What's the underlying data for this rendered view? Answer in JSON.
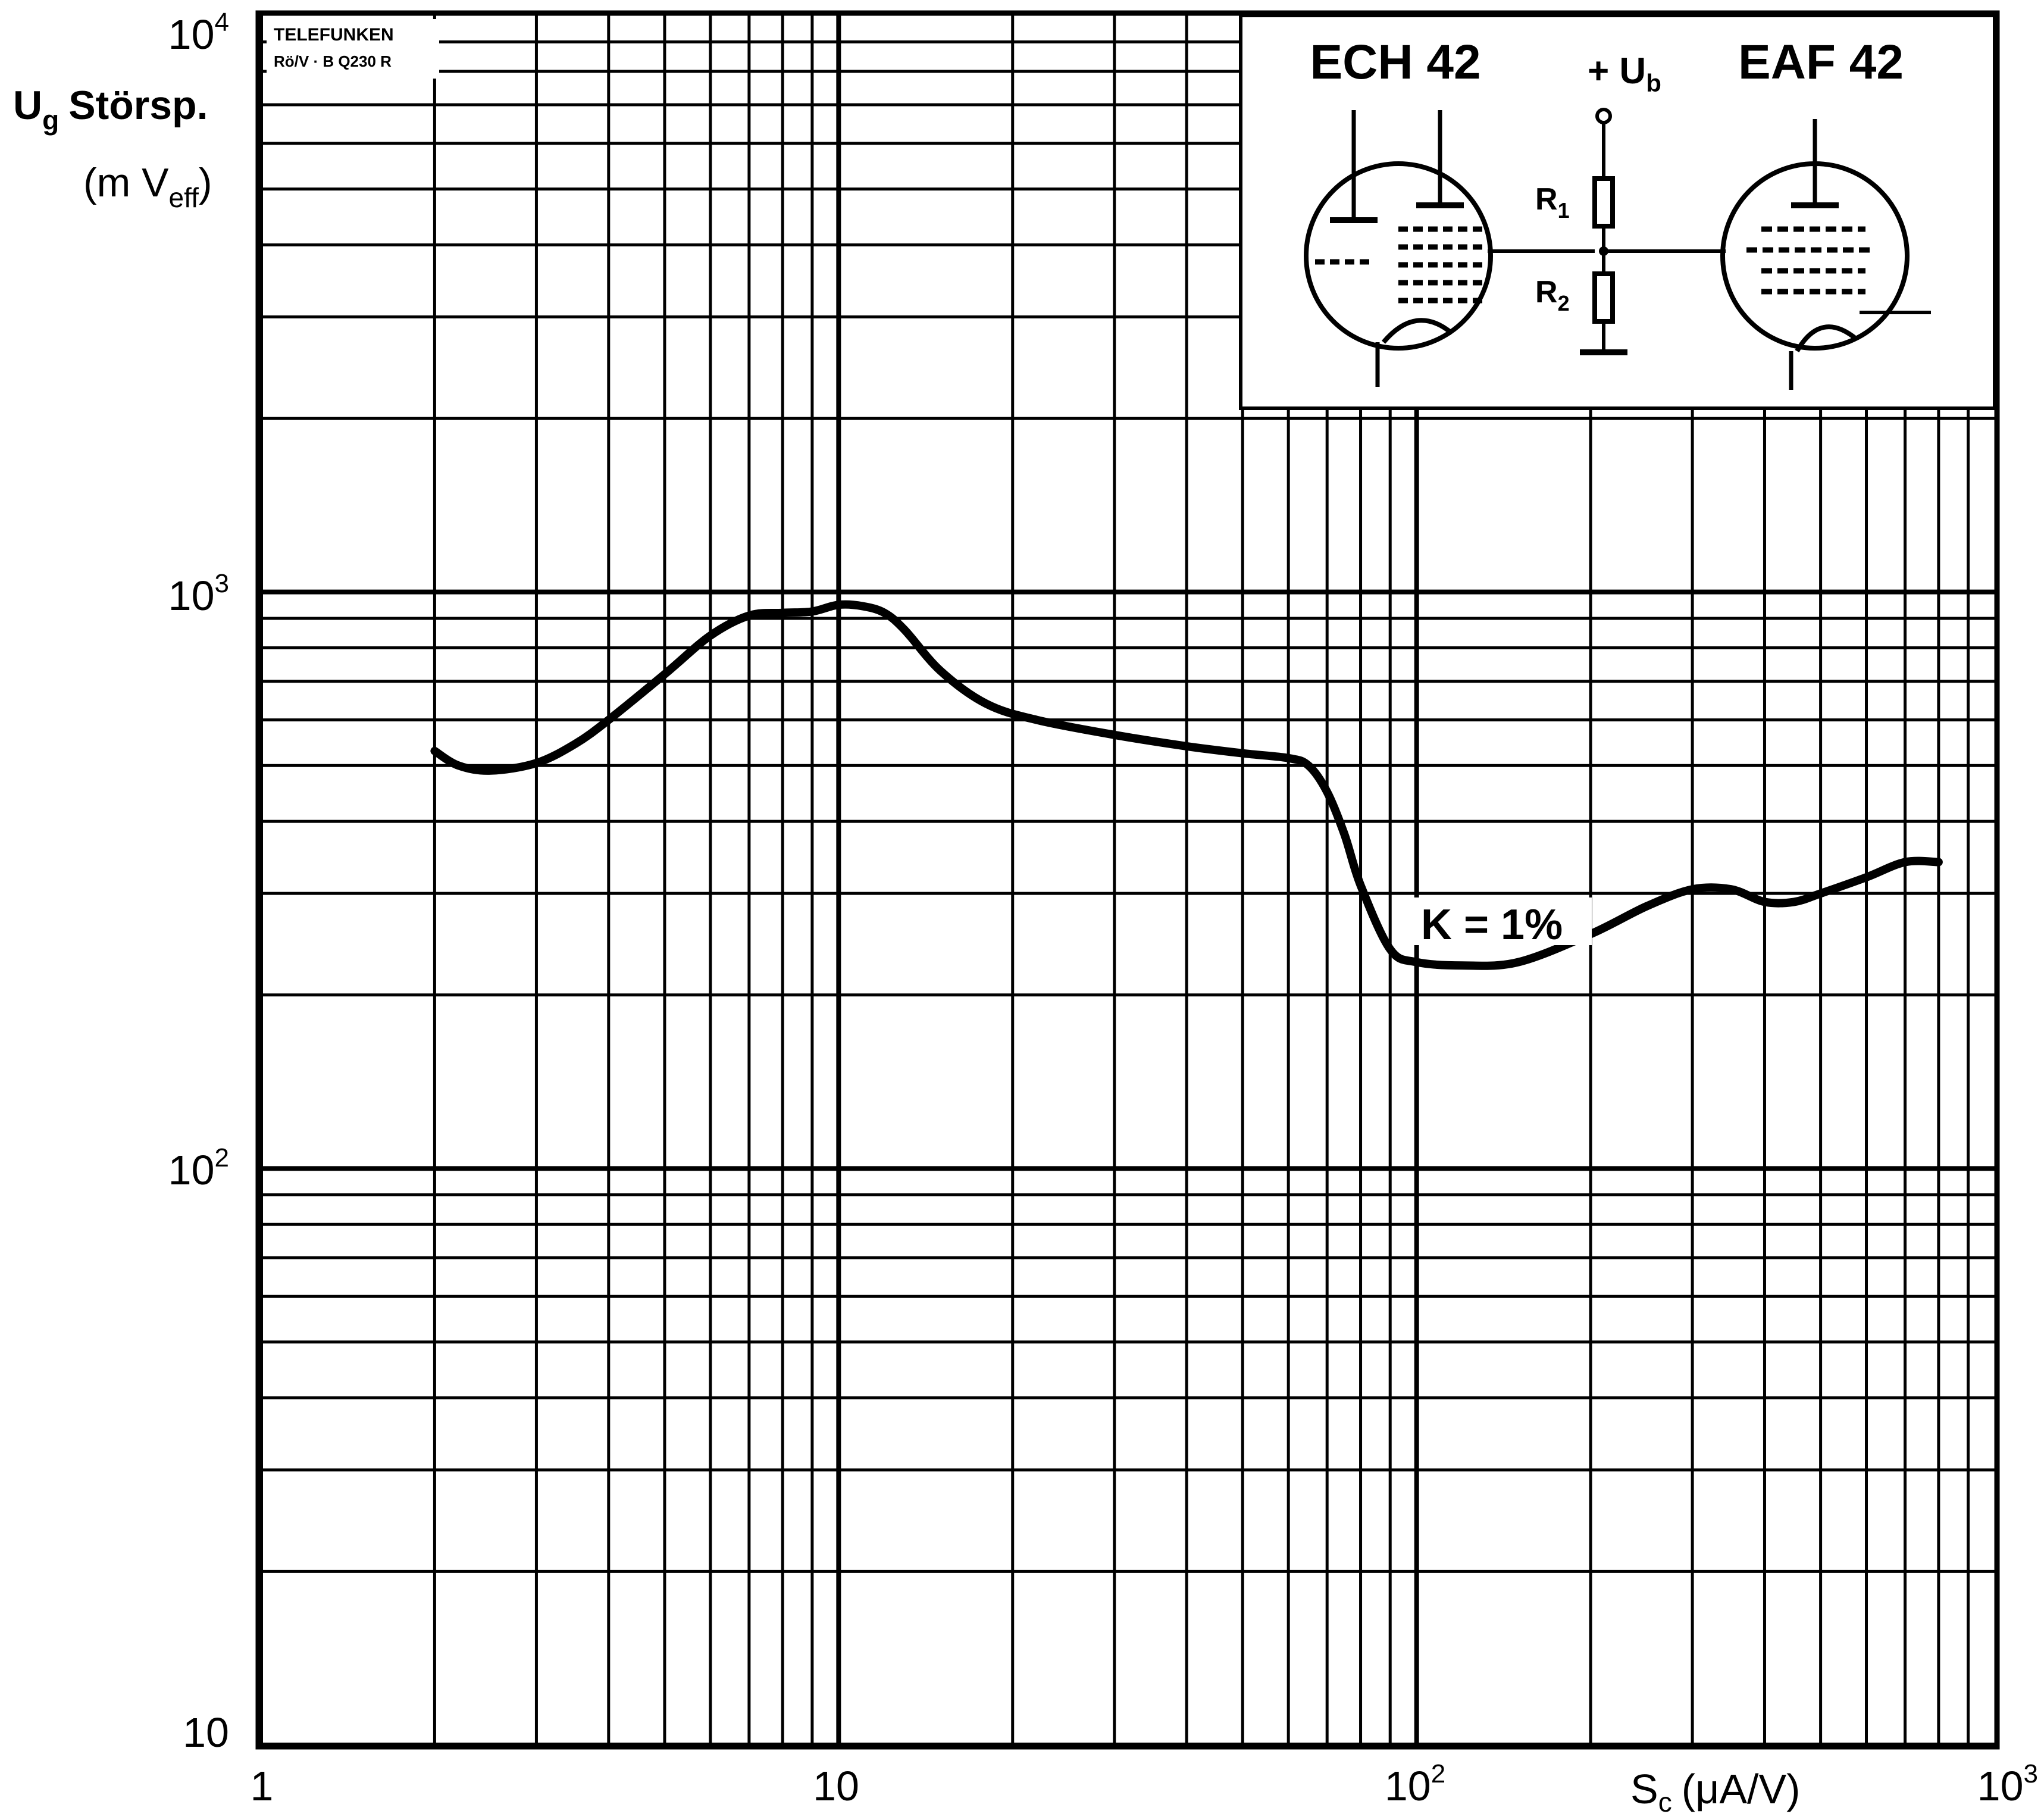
{
  "chart_data": {
    "type": "line",
    "x_scale": "log",
    "y_scale": "log",
    "xlim": [
      1,
      1000
    ],
    "ylim": [
      10,
      10000
    ],
    "grid": true,
    "x_tick_labels": [
      {
        "value": 1,
        "base": "1",
        "exp": ""
      },
      {
        "value": 10,
        "base": "10",
        "exp": ""
      },
      {
        "value": 100,
        "base": "10",
        "exp": "2"
      },
      {
        "value": 1000,
        "base": "10",
        "exp": "3"
      }
    ],
    "y_tick_labels": [
      {
        "value": 10,
        "base": "10",
        "exp": ""
      },
      {
        "value": 100,
        "base": "10",
        "exp": "2"
      },
      {
        "value": 1000,
        "base": "10",
        "exp": "3"
      },
      {
        "value": 10000,
        "base": "10",
        "exp": "4"
      }
    ],
    "xlabel": {
      "main": "S",
      "sub": "c",
      "unit": "(μA/V)"
    },
    "ylabel": {
      "line1_main": "U",
      "line1_sub": "g",
      "line1_rest": "Störsp.",
      "line2_open": "(m V",
      "line2_sub": "eff",
      "line2_close": ")"
    },
    "series": [
      {
        "annotation": "K = 1%",
        "color": "#000000",
        "x": [
          2.0,
          2.2,
          2.5,
          3.0,
          3.5,
          4.0,
          5.0,
          6.0,
          7.0,
          8.0,
          9.0,
          10.0,
          11.0,
          12.0,
          13.0,
          15.0,
          18.0,
          22.0,
          30.0,
          40.0,
          50.0,
          60.0,
          65.0,
          70.0,
          75.0,
          80.0,
          90.0,
          100.0,
          120.0,
          150.0,
          200.0,
          250.0,
          300.0,
          350.0,
          400.0,
          450.0,
          500.0,
          600.0,
          700.0,
          800.0
        ],
        "y": [
          530,
          500,
          490,
          505,
          545,
          600,
          720,
          840,
          910,
          920,
          925,
          950,
          945,
          920,
          860,
          730,
          640,
          600,
          565,
          540,
          525,
          515,
          500,
          450,
          380,
          310,
          240,
          228,
          225,
          228,
          255,
          285,
          305,
          305,
          290,
          290,
          300,
          320,
          340,
          340
        ]
      }
    ]
  },
  "header_mark": {
    "line1": "TELEFUNKEN",
    "line2": "Rö/V · B Q230 R"
  },
  "inset_schematic": {
    "tube_left": "ECH 42",
    "tube_right": "EAF 42",
    "supply": {
      "main": "+ U",
      "sub": "b"
    },
    "r1": {
      "main": "R",
      "sub": "1"
    },
    "r2": {
      "main": "R",
      "sub": "2"
    }
  }
}
